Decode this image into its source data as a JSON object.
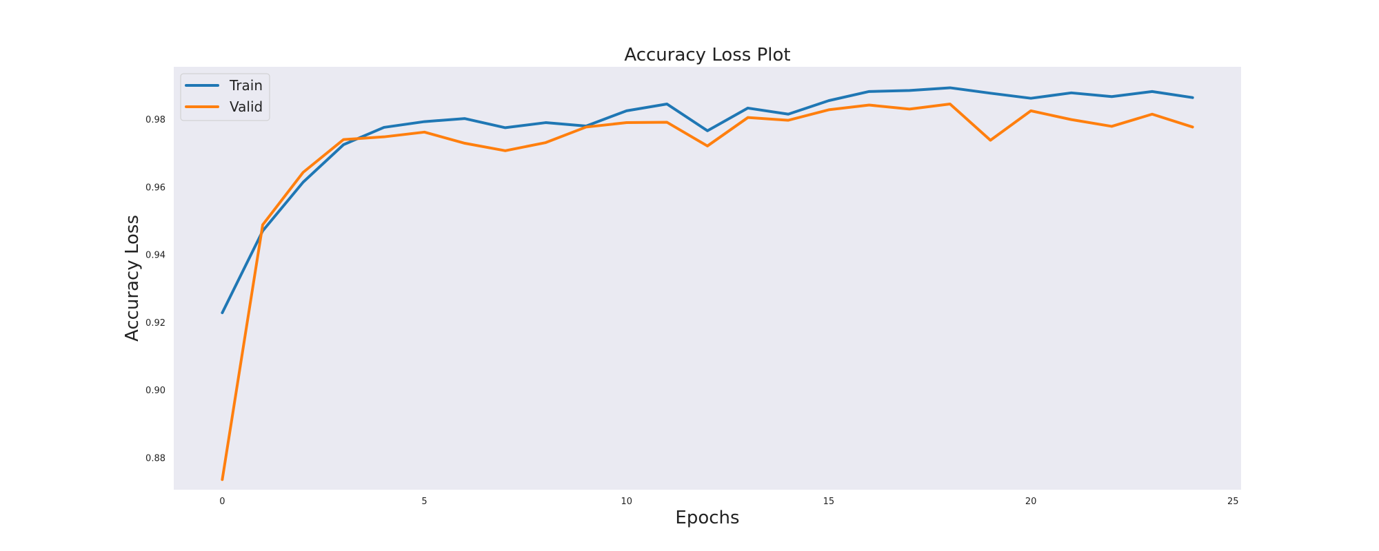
{
  "chart_data": {
    "type": "line",
    "title": "Accuracy Loss Plot",
    "xlabel": "Epochs",
    "ylabel": "Accuracy Loss",
    "xlim": [
      -1.2,
      25.2
    ],
    "ylim": [
      0.8705,
      0.9955
    ],
    "xticks": [
      0,
      5,
      10,
      15,
      20,
      25
    ],
    "yticks": [
      0.88,
      0.9,
      0.92,
      0.94,
      0.96,
      0.98
    ],
    "ytick_labels": [
      "0.88",
      "0.90",
      "0.92",
      "0.94",
      "0.96",
      "0.98"
    ],
    "grid": false,
    "legend_position": "top-left",
    "background_color": "#eaeaf2",
    "x": [
      0,
      1,
      2,
      3,
      4,
      5,
      6,
      7,
      8,
      9,
      10,
      11,
      12,
      13,
      14,
      15,
      16,
      17,
      18,
      19,
      20,
      21,
      22,
      23,
      24
    ],
    "series": [
      {
        "name": "Train",
        "color": "#1f77b4",
        "values": [
          0.9228,
          0.947,
          0.9614,
          0.9725,
          0.9776,
          0.9793,
          0.9802,
          0.9775,
          0.979,
          0.978,
          0.9825,
          0.9845,
          0.9766,
          0.9833,
          0.9815,
          0.9855,
          0.9882,
          0.9885,
          0.9893,
          0.9877,
          0.9862,
          0.9878,
          0.9867,
          0.9882,
          0.9864
        ]
      },
      {
        "name": "Valid",
        "color": "#ff7f0e",
        "values": [
          0.8735,
          0.9488,
          0.9643,
          0.974,
          0.9748,
          0.9762,
          0.9729,
          0.9707,
          0.9731,
          0.9777,
          0.979,
          0.9791,
          0.9721,
          0.9805,
          0.9797,
          0.9828,
          0.9842,
          0.983,
          0.9845,
          0.9738,
          0.9825,
          0.9799,
          0.9779,
          0.9815,
          0.9777
        ]
      }
    ]
  }
}
